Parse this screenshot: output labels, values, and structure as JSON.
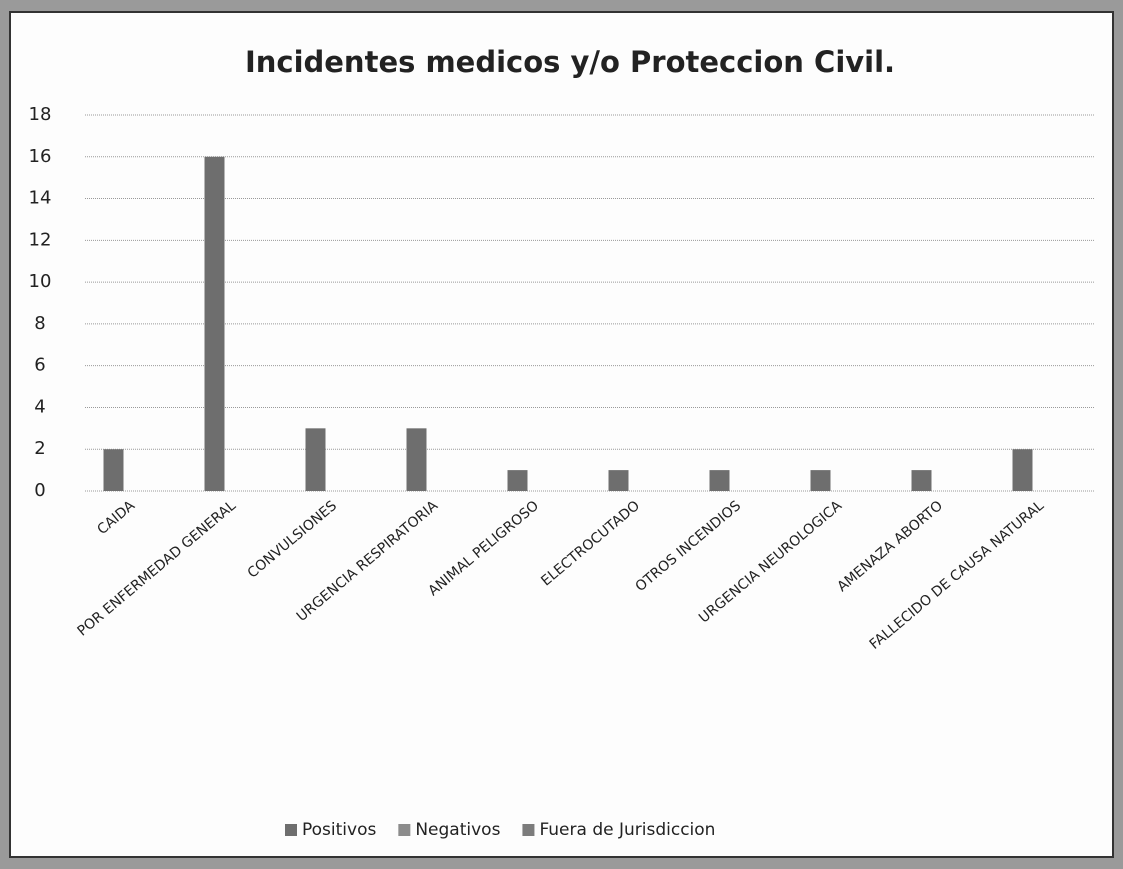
{
  "chart_data": {
    "type": "bar",
    "title": "Incidentes medicos y/o Proteccion Civil.",
    "categories": [
      "CAIDA",
      "POR ENFERMEDAD GENERAL",
      "CONVULSIONES",
      "URGENCIA RESPIRATORIA",
      "ANIMAL PELIGROSO",
      "ELECTROCUTADO",
      "OTROS INCENDIOS",
      "URGENCIA NEUROLOGICA",
      "AMENAZA ABORTO",
      "FALLECIDO DE CAUSA NATURAL"
    ],
    "series": [
      {
        "name": "Positivos",
        "color": "#6e6e6e",
        "values": [
          2,
          16,
          3,
          3,
          1,
          1,
          1,
          1,
          1,
          2
        ]
      },
      {
        "name": "Negativos",
        "color": "#8c8c8c",
        "values": [
          0,
          0,
          0,
          0,
          0,
          0,
          0,
          0,
          0,
          0
        ]
      },
      {
        "name": "Fuera de Jurisdiccion",
        "color": "#7c7c7c",
        "values": [
          0,
          0,
          0,
          0,
          0,
          0,
          0,
          0,
          0,
          0
        ]
      }
    ],
    "ylim": [
      0,
      18
    ],
    "yticks": [
      0,
      2,
      4,
      6,
      8,
      10,
      12,
      14,
      16,
      18
    ],
    "grid": true,
    "legend": "bottom"
  }
}
